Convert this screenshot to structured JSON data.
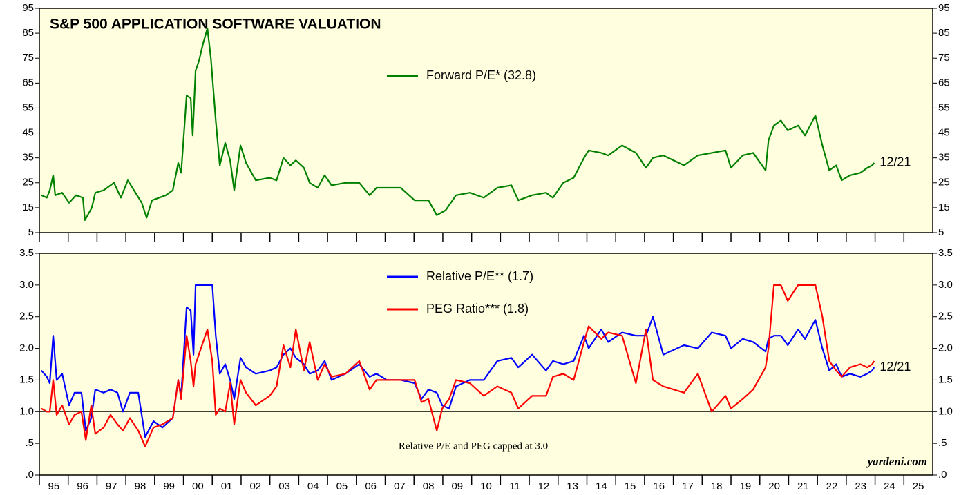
{
  "chart_data": [
    {
      "type": "line",
      "title": "S&P 500 APPLICATION SOFTWARE VALUATION",
      "x": [
        1995.07,
        1995.26,
        1995.36,
        1995.48,
        1995.55,
        1995.79,
        1996.03,
        1996.27,
        1996.51,
        1996.58,
        1996.82,
        1996.94,
        1997.23,
        1997.59,
        1997.83,
        1998.07,
        1998.55,
        1998.72,
        1998.91,
        1999.39,
        1999.63,
        1999.82,
        1999.92,
        2000.11,
        2000.25,
        2000.32,
        2000.42,
        2000.54,
        2000.66,
        2000.83,
        2000.95,
        2001.12,
        2001.26,
        2001.45,
        2001.62,
        2001.76,
        2001.98,
        2002.17,
        2002.51,
        2002.99,
        2003.23,
        2003.47,
        2003.71,
        2003.9,
        2004.18,
        2004.38,
        2004.66,
        2004.9,
        2005.14,
        2005.62,
        2006.1,
        2006.46,
        2006.7,
        2007.54,
        2008.02,
        2008.5,
        2008.79,
        2009.1,
        2009.46,
        2009.94,
        2010.42,
        2010.89,
        2011.38,
        2011.62,
        2012.1,
        2012.58,
        2012.82,
        2013.18,
        2013.54,
        2013.9,
        2014.06,
        2014.5,
        2014.74,
        2015.22,
        2015.7,
        2016.05,
        2016.29,
        2016.65,
        2017.37,
        2017.85,
        2018.33,
        2018.81,
        2019.0,
        2019.41,
        2019.77,
        2020.2,
        2020.3,
        2020.49,
        2020.73,
        2020.97,
        2021.33,
        2021.57,
        2021.93,
        2022.17,
        2022.41,
        2022.65,
        2022.84,
        2023.13,
        2023.49,
        2023.73,
        2023.9,
        2023.97
      ],
      "series": [
        {
          "name": "Forward P/E* (32.8)",
          "color": "#008000",
          "values": [
            20,
            19,
            22,
            28,
            20,
            21,
            17,
            20,
            19,
            10,
            15,
            21,
            22,
            25,
            19,
            26,
            17,
            11,
            18,
            20,
            22,
            33,
            29,
            60,
            59,
            44,
            70,
            74,
            80,
            87,
            75,
            50,
            32,
            41,
            34,
            22,
            40,
            33,
            26,
            27,
            26,
            35,
            32,
            34,
            31,
            25,
            23,
            28,
            24,
            25,
            25,
            20,
            23,
            23,
            18,
            18,
            12,
            14,
            20,
            21,
            19,
            23,
            24,
            18,
            20,
            21,
            19,
            25,
            27,
            35,
            38,
            37,
            36,
            40,
            37,
            31,
            35,
            36,
            32,
            36,
            37,
            38,
            31,
            36,
            37,
            30,
            42,
            48,
            50,
            46,
            48,
            44,
            52,
            40,
            30,
            32,
            26,
            28,
            29,
            31,
            32,
            33
          ]
        }
      ],
      "end_label": "12/21",
      "xlim": [
        1995,
        2026
      ],
      "ylim": [
        5,
        95
      ],
      "yticks": [
        5,
        15,
        25,
        35,
        45,
        55,
        65,
        75,
        85,
        95
      ],
      "legend": "upper center",
      "background": "#ffffe0"
    },
    {
      "type": "line",
      "x": [
        1995.07,
        1995.26,
        1995.36,
        1995.48,
        1995.6,
        1995.79,
        1996.03,
        1996.22,
        1996.46,
        1996.61,
        1996.8,
        1996.94,
        1997.23,
        1997.47,
        1997.71,
        1997.9,
        1998.14,
        1998.43,
        1998.67,
        1998.96,
        1999.27,
        1999.63,
        1999.82,
        1999.92,
        2000.11,
        2000.25,
        2000.35,
        2000.42,
        2000.83,
        2001.0,
        2001.12,
        2001.26,
        2001.45,
        2001.62,
        2001.76,
        2001.98,
        2002.17,
        2002.51,
        2002.99,
        2003.23,
        2003.47,
        2003.71,
        2003.9,
        2004.18,
        2004.38,
        2004.66,
        2004.9,
        2005.14,
        2005.62,
        2006.1,
        2006.46,
        2006.7,
        2007.06,
        2007.54,
        2008.02,
        2008.26,
        2008.5,
        2008.79,
        2008.98,
        2009.22,
        2009.46,
        2009.94,
        2010.42,
        2010.89,
        2011.38,
        2011.62,
        2012.1,
        2012.58,
        2012.82,
        2013.18,
        2013.54,
        2013.9,
        2014.06,
        2014.5,
        2014.74,
        2015.22,
        2015.7,
        2016.05,
        2016.29,
        2016.65,
        2017.37,
        2017.85,
        2018.33,
        2018.81,
        2019.0,
        2019.41,
        2019.77,
        2020.2,
        2020.3,
        2020.49,
        2020.73,
        2020.97,
        2021.33,
        2021.57,
        2021.93,
        2022.17,
        2022.41,
        2022.65,
        2022.84,
        2023.13,
        2023.49,
        2023.73,
        2023.9,
        2023.97
      ],
      "series": [
        {
          "name": "Relative P/E** (1.7)",
          "color": "#0000ff",
          "values": [
            1.65,
            1.55,
            1.45,
            2.2,
            1.5,
            1.6,
            1.1,
            1.3,
            1.3,
            0.7,
            0.9,
            1.35,
            1.3,
            1.35,
            1.3,
            1.0,
            1.3,
            1.3,
            0.6,
            0.85,
            0.75,
            0.9,
            1.5,
            1.25,
            2.65,
            2.6,
            1.9,
            3.0,
            3.0,
            3.0,
            2.2,
            1.6,
            1.75,
            1.5,
            1.2,
            1.85,
            1.7,
            1.6,
            1.65,
            1.7,
            1.9,
            2.0,
            1.85,
            1.75,
            1.6,
            1.65,
            1.8,
            1.5,
            1.6,
            1.75,
            1.55,
            1.6,
            1.5,
            1.5,
            1.45,
            1.2,
            1.35,
            1.3,
            1.1,
            1.05,
            1.4,
            1.5,
            1.5,
            1.8,
            1.85,
            1.7,
            1.9,
            1.65,
            1.8,
            1.75,
            1.8,
            2.2,
            2.0,
            2.3,
            2.1,
            2.25,
            2.2,
            2.2,
            2.5,
            1.9,
            2.05,
            2.0,
            2.25,
            2.2,
            2.0,
            2.15,
            2.1,
            1.95,
            2.15,
            2.2,
            2.2,
            2.05,
            2.3,
            2.15,
            2.45,
            2.0,
            1.65,
            1.75,
            1.55,
            1.6,
            1.55,
            1.6,
            1.65,
            1.7
          ]
        },
        {
          "name": "PEG Ratio*** (1.8)",
          "color": "#ff0000",
          "values": [
            1.05,
            1.0,
            1.0,
            1.5,
            0.95,
            1.1,
            0.8,
            0.95,
            1.0,
            0.55,
            1.1,
            0.65,
            0.75,
            0.95,
            0.8,
            0.7,
            0.9,
            0.7,
            0.45,
            0.75,
            0.8,
            0.9,
            1.5,
            1.2,
            2.2,
            1.8,
            1.4,
            1.75,
            2.3,
            1.8,
            0.95,
            1.05,
            1.0,
            1.45,
            0.8,
            1.5,
            1.3,
            1.1,
            1.25,
            1.4,
            2.05,
            1.7,
            2.3,
            1.65,
            2.1,
            1.5,
            1.75,
            1.55,
            1.6,
            1.8,
            1.35,
            1.5,
            1.5,
            1.5,
            1.5,
            1.15,
            1.2,
            0.7,
            1.05,
            1.2,
            1.5,
            1.45,
            1.25,
            1.4,
            1.3,
            1.05,
            1.25,
            1.25,
            1.55,
            1.6,
            1.5,
            2.1,
            2.35,
            2.15,
            2.25,
            2.2,
            1.45,
            2.3,
            1.5,
            1.4,
            1.3,
            1.6,
            1.0,
            1.25,
            1.05,
            1.2,
            1.35,
            1.7,
            2.0,
            3.0,
            3.0,
            2.75,
            3.0,
            3.0,
            3.0,
            2.5,
            1.8,
            1.65,
            1.55,
            1.7,
            1.75,
            1.7,
            1.75,
            1.8
          ]
        }
      ],
      "end_label": "12/21",
      "annotation": "Relative P/E and PEG capped at 3.0",
      "source": "yardeni.com",
      "hline": 1,
      "xlim": [
        1995,
        2026
      ],
      "xticks": [
        {
          "value": 1995,
          "label": "95"
        },
        {
          "value": 1996,
          "label": "96"
        },
        {
          "value": 1997,
          "label": "97"
        },
        {
          "value": 1998,
          "label": "98"
        },
        {
          "value": 1999,
          "label": "99"
        },
        {
          "value": 2000,
          "label": "00"
        },
        {
          "value": 2001,
          "label": "01"
        },
        {
          "value": 2002,
          "label": "02"
        },
        {
          "value": 2003,
          "label": "03"
        },
        {
          "value": 2004,
          "label": "04"
        },
        {
          "value": 2005,
          "label": "05"
        },
        {
          "value": 2006,
          "label": "06"
        },
        {
          "value": 2007,
          "label": "07"
        },
        {
          "value": 2008,
          "label": "08"
        },
        {
          "value": 2009,
          "label": "09"
        },
        {
          "value": 2010,
          "label": "10"
        },
        {
          "value": 2011,
          "label": "11"
        },
        {
          "value": 2012,
          "label": "12"
        },
        {
          "value": 2013,
          "label": "13"
        },
        {
          "value": 2014,
          "label": "14"
        },
        {
          "value": 2015,
          "label": "15"
        },
        {
          "value": 2016,
          "label": "16"
        },
        {
          "value": 2017,
          "label": "17"
        },
        {
          "value": 2018,
          "label": "18"
        },
        {
          "value": 2019,
          "label": "19"
        },
        {
          "value": 2020,
          "label": "20"
        },
        {
          "value": 2021,
          "label": "21"
        },
        {
          "value": 2022,
          "label": "22"
        },
        {
          "value": 2023,
          "label": "23"
        },
        {
          "value": 2024,
          "label": "24"
        },
        {
          "value": 2025,
          "label": "25"
        }
      ],
      "ylim": [
        0,
        3.5
      ],
      "yticks": [
        {
          "value": 0,
          "label": ".0"
        },
        {
          "value": 0.5,
          "label": ".5"
        },
        {
          "value": 1,
          "label": "1.0"
        },
        1.5,
        {
          "value": 2,
          "label": "2.0"
        },
        2.5,
        {
          "value": 3,
          "label": "3.0"
        },
        3.5
      ],
      "legend": "upper center",
      "background": "#ffffe0"
    }
  ]
}
